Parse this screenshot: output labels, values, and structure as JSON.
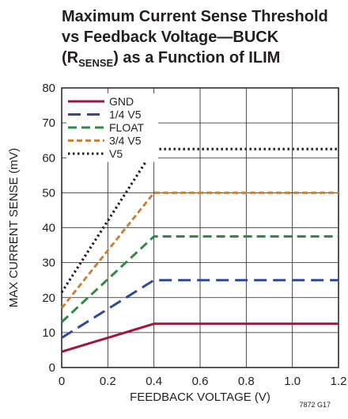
{
  "chart_data": {
    "type": "line",
    "title_line1": "Maximum Current Sense Threshold",
    "title_line2": "vs Feedback Voltage—BUCK",
    "title_line3_pre": "(R",
    "title_line3_sub": "SENSE",
    "title_line3_post": ") as a Function of ILIM",
    "xlabel": "FEEDBACK VOLTAGE (V)",
    "ylabel": "MAX CURRENT SENSE (mV)",
    "xlim": [
      0,
      1.2
    ],
    "ylim": [
      0,
      80
    ],
    "x_ticks": [
      0,
      0.2,
      0.4,
      0.6,
      0.8,
      1.0,
      1.2
    ],
    "x_tick_labels": [
      "0",
      "0.2",
      "0.4",
      "0.6",
      "0.8",
      "1.0",
      "1.2"
    ],
    "y_ticks": [
      0,
      10,
      20,
      30,
      40,
      50,
      60,
      70,
      80
    ],
    "y_tick_labels": [
      "0",
      "10",
      "20",
      "30",
      "40",
      "50",
      "60",
      "70",
      "80"
    ],
    "grid": true,
    "legend_position": "top-left",
    "series": [
      {
        "name": "GND",
        "color": "#a3133a",
        "dash": "solid",
        "x": [
          0,
          0.4,
          1.2
        ],
        "y": [
          4.5,
          12.5,
          12.5
        ]
      },
      {
        "name": "1/4 V5",
        "color": "#2e4a9c",
        "dash": "longdash",
        "x": [
          0,
          0.4,
          1.2
        ],
        "y": [
          8.5,
          25,
          25
        ]
      },
      {
        "name": "FLOAT",
        "color": "#2f8a45",
        "dash": "dash",
        "x": [
          0,
          0.4,
          1.2
        ],
        "y": [
          13,
          37.5,
          37.5
        ]
      },
      {
        "name": "3/4 V5",
        "color": "#c9823a",
        "dash": "shortdash",
        "x": [
          0,
          0.4,
          1.2
        ],
        "y": [
          17,
          50,
          50
        ]
      },
      {
        "name": "V5",
        "color": "#231f20",
        "dash": "dot",
        "x": [
          0,
          0.4,
          1.2
        ],
        "y": [
          21.5,
          62.5,
          62.5
        ]
      }
    ],
    "figure_id": "7872 G17"
  }
}
